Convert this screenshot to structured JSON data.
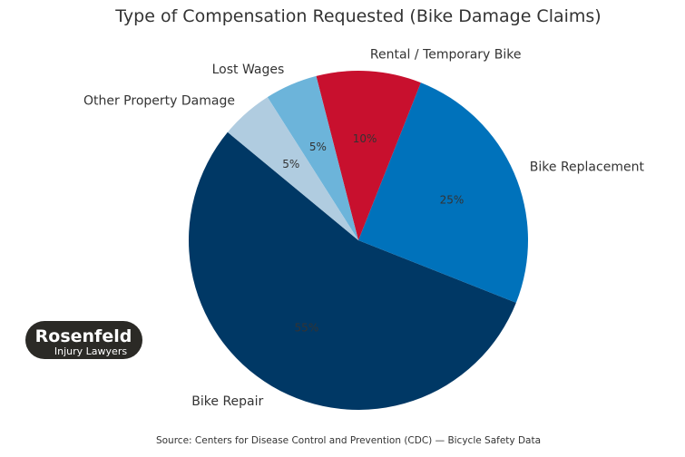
{
  "chart_data": {
    "type": "pie",
    "title": "Type of Compensation Requested (Bike Damage Claims)",
    "categories": [
      "Bike Repair",
      "Bike Replacement",
      "Rental / Temporary Bike",
      "Lost Wages",
      "Other Property Damage"
    ],
    "values": [
      55,
      25,
      10,
      5,
      5
    ],
    "value_labels": [
      "55%",
      "25%",
      "10%",
      "5%",
      "5%"
    ],
    "colors": [
      "#003865",
      "#0072BB",
      "#C8102E",
      "#6CB4DA",
      "#B0CCE0"
    ],
    "start_angle_deg": 140.4,
    "direction": "counterclockwise",
    "legend": "none"
  },
  "source": "Source: Centers for Disease Control and Prevention (CDC) — Bicycle Safety Data",
  "logo": {
    "name": "Rosenfeld",
    "tagline": "Injury Lawyers"
  }
}
